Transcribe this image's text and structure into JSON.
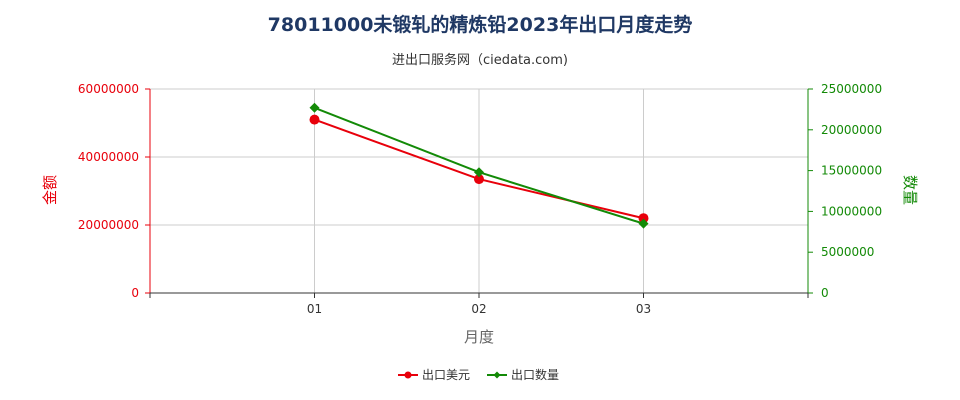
{
  "chart_data": {
    "type": "line",
    "title": "78011000未锻轧的精炼铅2023年出口月度走势",
    "subtitle": "进出口服务网（ciedata.com)",
    "xlabel": "月度",
    "ylabel_left": "金额",
    "ylabel_right": "数量",
    "categories": [
      "01",
      "02",
      "03"
    ],
    "y_left": {
      "range": [
        0,
        60000000
      ],
      "ticks": [
        "0",
        "20000000",
        "40000000",
        "60000000"
      ]
    },
    "y_right": {
      "range": [
        0,
        25000000
      ],
      "ticks": [
        "0",
        "5000000",
        "10000000",
        "15000000",
        "20000000",
        "25000000"
      ]
    },
    "series": [
      {
        "name": "出口美元",
        "axis": "left",
        "color": "#e8000b",
        "marker": "circle",
        "values": [
          51000000,
          33500000,
          22000000
        ]
      },
      {
        "name": "出口数量",
        "axis": "right",
        "color": "#138a07",
        "marker": "diamond",
        "values": [
          22700000,
          14800000,
          8500000
        ]
      }
    ],
    "grid": true,
    "legend_position": "bottom"
  }
}
